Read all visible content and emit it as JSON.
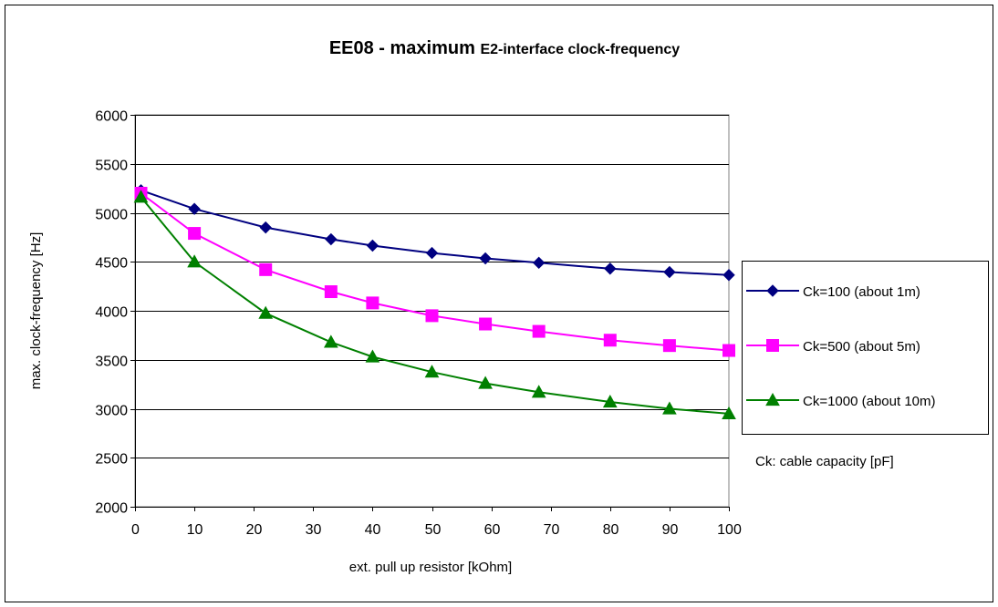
{
  "chart_data": {
    "type": "line",
    "title_main": "EE08 - maximum ",
    "title_sub": "E2-interface clock-frequency",
    "xlabel": "ext. pull up resistor [kOhm]",
    "ylabel": "max. clock-frequency [Hz]",
    "xlim": [
      0,
      100
    ],
    "ylim": [
      2000,
      6000
    ],
    "xticks": [
      0,
      10,
      20,
      30,
      40,
      50,
      60,
      70,
      80,
      90,
      100
    ],
    "yticks": [
      2000,
      2500,
      3000,
      3500,
      4000,
      4500,
      5000,
      5500,
      6000
    ],
    "grid": "horizontal",
    "legend_position": "right",
    "note": "Ck: cable capacity [pF]",
    "x": [
      1,
      10,
      22,
      33,
      40,
      50,
      59,
      68,
      80,
      90,
      100
    ],
    "series": [
      {
        "name": "Ck=100  (about 1m)",
        "color": "#000080",
        "marker": "diamond",
        "values": [
          5230,
          5040,
          4850,
          4730,
          4665,
          4590,
          4535,
          4490,
          4430,
          4395,
          4365
        ]
      },
      {
        "name": "Ck=500  (about 5m)",
        "color": "#ff00ff",
        "marker": "square",
        "values": [
          5200,
          4790,
          4420,
          4195,
          4080,
          3950,
          3865,
          3790,
          3700,
          3645,
          3595
        ]
      },
      {
        "name": "Ck=1000 (about 10m)",
        "color": "#008000",
        "marker": "triangle",
        "values": [
          5160,
          4500,
          3975,
          3680,
          3530,
          3375,
          3260,
          3170,
          3070,
          3000,
          2950
        ]
      }
    ]
  }
}
